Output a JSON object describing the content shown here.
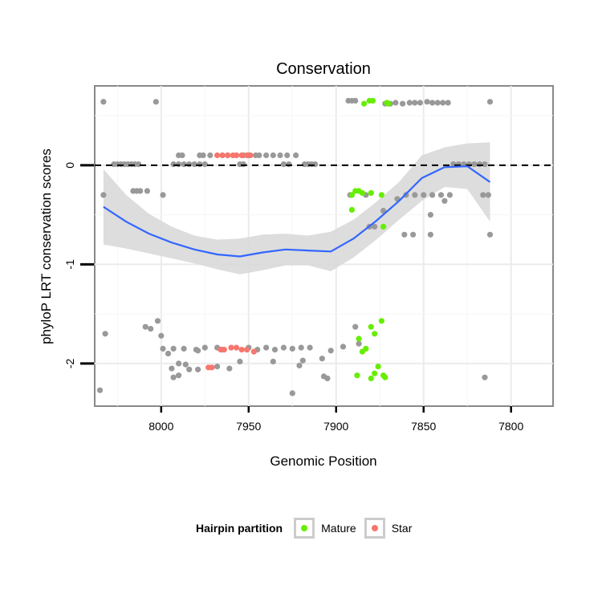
{
  "chart_data": {
    "type": "scatter",
    "title": "Conservation",
    "xlabel": "Genomic Position",
    "ylabel": "phyloP LRT conservation scores",
    "x_reversed": true,
    "xlim": [
      8038,
      7776
    ],
    "ylim": [
      -2.43,
      0.8
    ],
    "x_ticks": [
      8000,
      7950,
      7900,
      7850,
      7800
    ],
    "y_ticks": [
      -2,
      -1,
      0
    ],
    "hline": 0,
    "legend": {
      "title": "Hairpin partition",
      "placement": "bottom",
      "entries": [
        {
          "label": "Mature",
          "color": "#66ee00"
        },
        {
          "label": "Star",
          "color": "#f8766d"
        }
      ]
    },
    "colors": {
      "other": "#999999",
      "mature": "#66ee00",
      "star": "#f8766d",
      "smooth": "#3366ff",
      "band": "#d9d9d9"
    },
    "series": [
      {
        "name": "other",
        "points": [
          [
            8033,
            0.64
          ],
          [
            8003,
            0.64
          ],
          [
            7812,
            0.64
          ],
          [
            8027,
            0.01
          ],
          [
            8025,
            0.01
          ],
          [
            8023,
            0.01
          ],
          [
            8021,
            0.01
          ],
          [
            8019,
            0.01
          ],
          [
            8017,
            0.01
          ],
          [
            8015,
            0.01
          ],
          [
            8013,
            0.01
          ],
          [
            7993,
            0.01
          ],
          [
            7990,
            0.01
          ],
          [
            7987,
            0.01
          ],
          [
            7984,
            0.01
          ],
          [
            7981,
            0.01
          ],
          [
            7978,
            0.01
          ],
          [
            7975,
            0.01
          ],
          [
            7955,
            0.01
          ],
          [
            7953,
            0.01
          ],
          [
            7930,
            0.01
          ],
          [
            7927,
            0.01
          ],
          [
            7918,
            0.01
          ],
          [
            7916,
            0.01
          ],
          [
            7914,
            0.01
          ],
          [
            7912,
            0.01
          ],
          [
            7833,
            0.01
          ],
          [
            7830,
            0.01
          ],
          [
            7827,
            0.01
          ],
          [
            7824,
            0.01
          ],
          [
            7821,
            0.01
          ],
          [
            7818,
            0.01
          ],
          [
            7815,
            0.01
          ],
          [
            7990,
            0.1
          ],
          [
            7988,
            0.1
          ],
          [
            7978,
            0.1
          ],
          [
            7976,
            0.1
          ],
          [
            7972,
            0.1
          ],
          [
            7965,
            0.1
          ],
          [
            7962,
            0.1
          ],
          [
            7957,
            0.1
          ],
          [
            7953,
            0.1
          ],
          [
            7950,
            0.1
          ],
          [
            7946,
            0.1
          ],
          [
            7944,
            0.1
          ],
          [
            7940,
            0.1
          ],
          [
            7936,
            0.1
          ],
          [
            7932,
            0.1
          ],
          [
            7928,
            0.1
          ],
          [
            7923,
            0.1
          ],
          [
            7893,
            0.65
          ],
          [
            7891,
            0.65
          ],
          [
            7889,
            0.65
          ],
          [
            7872,
            0.62
          ],
          [
            7869,
            0.62
          ],
          [
            7866,
            0.63
          ],
          [
            7862,
            0.62
          ],
          [
            7858,
            0.63
          ],
          [
            7855,
            0.63
          ],
          [
            7852,
            0.63
          ],
          [
            7848,
            0.64
          ],
          [
            7845,
            0.63
          ],
          [
            7842,
            0.63
          ],
          [
            7839,
            0.63
          ],
          [
            7836,
            0.63
          ],
          [
            8033,
            -0.3
          ],
          [
            8016,
            -0.26
          ],
          [
            8014,
            -0.26
          ],
          [
            8012,
            -0.26
          ],
          [
            8008,
            -0.26
          ],
          [
            7999,
            -0.3
          ],
          [
            7892,
            -0.3
          ],
          [
            7883,
            -0.3
          ],
          [
            7881,
            -0.62
          ],
          [
            7878,
            -0.62
          ],
          [
            7873,
            -0.46
          ],
          [
            7865,
            -0.34
          ],
          [
            7860,
            -0.3
          ],
          [
            7855,
            -0.3
          ],
          [
            7850,
            -0.3
          ],
          [
            7846,
            -0.5
          ],
          [
            7845,
            -0.3
          ],
          [
            7840,
            -0.3
          ],
          [
            7838,
            -0.36
          ],
          [
            7835,
            -0.3
          ],
          [
            7861,
            -0.7
          ],
          [
            7856,
            -0.7
          ],
          [
            7846,
            -0.7
          ],
          [
            7816,
            -0.3
          ],
          [
            7813,
            -0.3
          ],
          [
            7812,
            -0.7
          ],
          [
            8032,
            -1.7
          ],
          [
            8009,
            -1.63
          ],
          [
            8006,
            -1.65
          ],
          [
            8002,
            -1.57
          ],
          [
            8000,
            -1.72
          ],
          [
            7999,
            -1.85
          ],
          [
            7993,
            -1.85
          ],
          [
            7987,
            -1.85
          ],
          [
            7980,
            -1.86
          ],
          [
            7975,
            -1.84
          ],
          [
            7968,
            -1.84
          ],
          [
            7965,
            -1.86
          ],
          [
            7950,
            -1.84
          ],
          [
            7945,
            -1.86
          ],
          [
            7940,
            -1.84
          ],
          [
            7935,
            -1.86
          ],
          [
            7930,
            -1.84
          ],
          [
            7925,
            -1.85
          ],
          [
            7920,
            -1.84
          ],
          [
            7915,
            -1.84
          ],
          [
            7903,
            -1.87
          ],
          [
            7896,
            -1.83
          ],
          [
            7889,
            -1.63
          ],
          [
            7887,
            -1.8
          ],
          [
            7996,
            -1.9
          ],
          [
            7994,
            -2.05
          ],
          [
            7990,
            -2.0
          ],
          [
            7986,
            -2.01
          ],
          [
            7984,
            -2.06
          ],
          [
            7979,
            -2.06
          ],
          [
            7968,
            -2.03
          ],
          [
            7961,
            -2.05
          ],
          [
            7955,
            -1.98
          ],
          [
            7936,
            -1.98
          ],
          [
            7921,
            -2.02
          ],
          [
            7919,
            -1.97
          ],
          [
            7907,
            -2.13
          ],
          [
            7905,
            -2.15
          ],
          [
            7993,
            -2.14
          ],
          [
            7990,
            -2.12
          ],
          [
            7979,
            -1.87
          ],
          [
            7908,
            -1.95
          ],
          [
            8035,
            -2.27
          ],
          [
            7925,
            -2.3
          ],
          [
            7815,
            -2.14
          ]
        ]
      },
      {
        "name": "Mature",
        "points": [
          [
            7884,
            0.62
          ],
          [
            7881,
            0.65
          ],
          [
            7879,
            0.65
          ],
          [
            7871,
            0.63
          ],
          [
            7870,
            0.62
          ],
          [
            7891,
            -0.3
          ],
          [
            7891,
            -0.45
          ],
          [
            7889,
            -0.26
          ],
          [
            7887,
            -0.26
          ],
          [
            7885,
            -0.28
          ],
          [
            7880,
            -0.28
          ],
          [
            7874,
            -0.3
          ],
          [
            7873,
            -0.62
          ],
          [
            7874,
            -1.57
          ],
          [
            7880,
            -1.63
          ],
          [
            7878,
            -1.7
          ],
          [
            7887,
            -1.75
          ],
          [
            7885,
            -1.88
          ],
          [
            7883,
            -1.85
          ],
          [
            7876,
            -2.03
          ],
          [
            7878,
            -2.1
          ],
          [
            7873,
            -2.12
          ],
          [
            7872,
            -2.14
          ],
          [
            7880,
            -2.15
          ],
          [
            7888,
            -2.12
          ]
        ]
      },
      {
        "name": "Star",
        "points": [
          [
            7968,
            0.1
          ],
          [
            7965,
            0.1
          ],
          [
            7962,
            0.1
          ],
          [
            7959,
            0.1
          ],
          [
            7957,
            0.1
          ],
          [
            7954,
            0.1
          ],
          [
            7951,
            0.1
          ],
          [
            7949,
            0.1
          ],
          [
            7966,
            -1.86
          ],
          [
            7964,
            -1.86
          ],
          [
            7960,
            -1.84
          ],
          [
            7957,
            -1.84
          ],
          [
            7954,
            -1.86
          ],
          [
            7951,
            -1.86
          ],
          [
            7947,
            -1.88
          ],
          [
            7973,
            -2.04
          ],
          [
            7971,
            -2.04
          ]
        ]
      }
    ],
    "smooth": {
      "x": [
        8033,
        8020,
        8007,
        7994,
        7981,
        7968,
        7955,
        7942,
        7929,
        7916,
        7903,
        7890,
        7877,
        7864,
        7851,
        7838,
        7825,
        7812
      ],
      "y": [
        -0.42,
        -0.57,
        -0.69,
        -0.78,
        -0.85,
        -0.9,
        -0.92,
        -0.88,
        -0.85,
        -0.86,
        -0.87,
        -0.74,
        -0.56,
        -0.36,
        -0.13,
        -0.02,
        -0.01,
        -0.17
      ],
      "ymin": [
        -0.8,
        -0.84,
        -0.89,
        -0.94,
        -0.99,
        -1.05,
        -1.1,
        -1.06,
        -1.01,
        -1.01,
        -1.07,
        -0.93,
        -0.75,
        -0.55,
        -0.36,
        -0.22,
        -0.24,
        -0.57
      ],
      "ymax": [
        -0.04,
        -0.3,
        -0.49,
        -0.62,
        -0.71,
        -0.75,
        -0.74,
        -0.7,
        -0.69,
        -0.71,
        -0.67,
        -0.55,
        -0.37,
        -0.17,
        0.1,
        0.18,
        0.22,
        0.23
      ]
    }
  }
}
